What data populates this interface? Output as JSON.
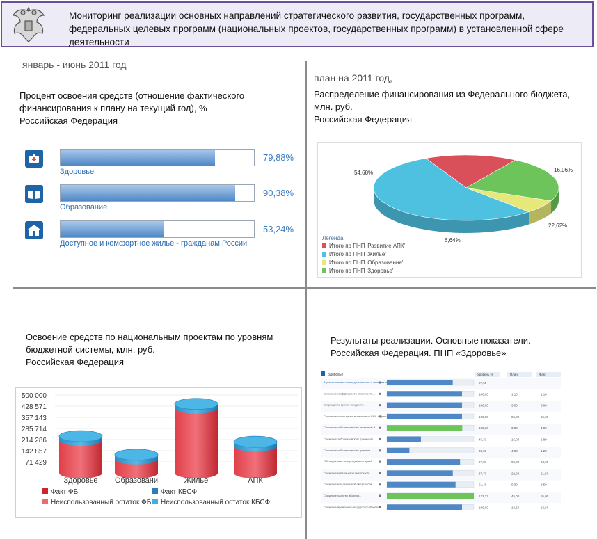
{
  "header": {
    "title": "Мониторинг реализации основных направлений стратегического развития, государственных программ, федеральных целевых программ (национальных проектов, государственных программ) в установленной сфере деятельности"
  },
  "period_label": "январь - июнь 2011 год",
  "plan_label": "план на 2011 год,",
  "q1": {
    "title_line1": "Процент освоения средств (отношение фактического",
    "title_line2": "финансирования к плану на текущий год), %",
    "region": "Российская Федерация",
    "items": [
      {
        "label": "Здоровье",
        "percent_text": "79,88%",
        "value": 79.88
      },
      {
        "label": "Образование",
        "percent_text": "90,38%",
        "value": 90.38
      },
      {
        "label": "Доступное и комфортное жилье - гражданам России",
        "percent_text": "53,24%",
        "value": 53.24
      }
    ]
  },
  "q2": {
    "title_line1": "Распределение финансирования из Федерального бюджета,",
    "title_line2": "млн. руб.",
    "region": "Российская Федерация",
    "legend_title": "Легенда"
  },
  "q3": {
    "title_line1": "Освоение средств по национальным проектам по уровням",
    "title_line2": "бюджетной системы, млн. руб.",
    "region": "Российская Федерация"
  },
  "q4": {
    "title_line1": "Результаты реализации. Основные показатели.",
    "title_line2": "Российская Федерация. ПНП «Здоровье»"
  },
  "colors": {
    "accent_blue": "#3a7bc0",
    "header_border": "#6b4f9a",
    "pie_red": "#d9505a",
    "pie_blue": "#4ec0e0",
    "pie_yellow": "#e6e87a",
    "pie_green": "#6cc45a"
  },
  "chart_data": [
    {
      "type": "pie",
      "title": "Распределение финансирования из Федерального бюджета, млн. руб.",
      "labels": [
        "Итого по ПНП 'Развитие АПК'",
        "Итого по ПНП 'Жилье'",
        "Итого по ПНП 'Образование'",
        "Итого по ПНП 'Здоровье'"
      ],
      "values": [
        16.06,
        54.68,
        6.64,
        22.62
      ],
      "value_labels": [
        "16,06%",
        "54,68%",
        "6,64%",
        "22,62%"
      ],
      "legend_position": "bottom-left"
    },
    {
      "type": "bar",
      "title": "Освоение средств по национальным проектам по уровням бюджетной системы, млн. руб.",
      "categories": [
        "Здоровье",
        "Образовани",
        "Жилье",
        "АПК"
      ],
      "yticks": [
        71429,
        142857,
        214286,
        285714,
        357143,
        428571,
        500000
      ],
      "ytick_labels": [
        "71 429",
        "142 857",
        "214 286",
        "285 714",
        "357 143",
        "428 571",
        "500 000"
      ],
      "ylim": [
        0,
        500000
      ],
      "series": [
        {
          "name": "Факт ФБ",
          "values": [
            225000,
            110000,
            418000,
            190000
          ]
        },
        {
          "name": "Факт КБСФ",
          "values": [
            4000,
            3000,
            5000,
            3000
          ]
        },
        {
          "name": "Неиспользованный остаток ФБ",
          "values": [
            4000,
            2000,
            12000,
            4000
          ]
        },
        {
          "name": "Неиспользованный остаток КБСФ",
          "values": [
            3000,
            2000,
            8000,
            3000
          ]
        }
      ],
      "legend_position": "bottom"
    }
  ],
  "table": {
    "section": "Здоровье",
    "col_headers": [
      "Уровень %",
      "План",
      "Факт"
    ],
    "rows": [
      {
        "name": "Задача по повышению доступности и качества медицинской помощи",
        "value": 87.65,
        "pct": "87,65",
        "plan": "",
        "fact": ""
      },
      {
        "name": "Снижение коэффициента смертности...",
        "value": 100,
        "pct": "100,00",
        "plan": "1,10",
        "fact": "1,10"
      },
      {
        "name": "Сокращение сроков ожидания...",
        "value": 100,
        "pct": "100,00",
        "plan": "3,00",
        "fact": "3,00"
      },
      {
        "name": "Снижение числа вновь выявленных ВИЧ-инфекций...",
        "value": 100,
        "pct": "100,00",
        "plan": "85,00",
        "fact": "85,00"
      },
      {
        "name": "Снижение заболеваемости гепатитом В...",
        "value": 100.33,
        "pct": "100,33",
        "plan": "3,00",
        "fact": "4,00"
      },
      {
        "name": "Снижение заболеваемости краснухой...",
        "value": 45.33,
        "pct": "45,33",
        "plan": "15,00",
        "fact": "6,80"
      },
      {
        "name": "Снижение заболеваемости гриппом...",
        "value": 30,
        "pct": "30,00",
        "plan": "4,00",
        "fact": "1,20"
      },
      {
        "name": "Обследование новорожденных детей...",
        "value": 97.37,
        "pct": "97,37",
        "plan": "95,00",
        "fact": "93,00"
      },
      {
        "name": "Снижение материнской смертности...",
        "value": 87.73,
        "pct": "87,73",
        "plan": "22,00",
        "fact": "21,50"
      },
      {
        "name": "Снижение младенческой смертности...",
        "value": 91.4,
        "pct": "91,40",
        "plan": "9,30",
        "fact": "8,50"
      },
      {
        "name": "Снижение частоты абортов...",
        "value": 122.22,
        "pct": "122,22",
        "plan": "45,00",
        "fact": "55,00"
      },
      {
        "name": "Снижение временной нетрудоспособности...",
        "value": 100,
        "pct": "100,00",
        "plan": "13,50",
        "fact": "13,50"
      }
    ]
  }
}
